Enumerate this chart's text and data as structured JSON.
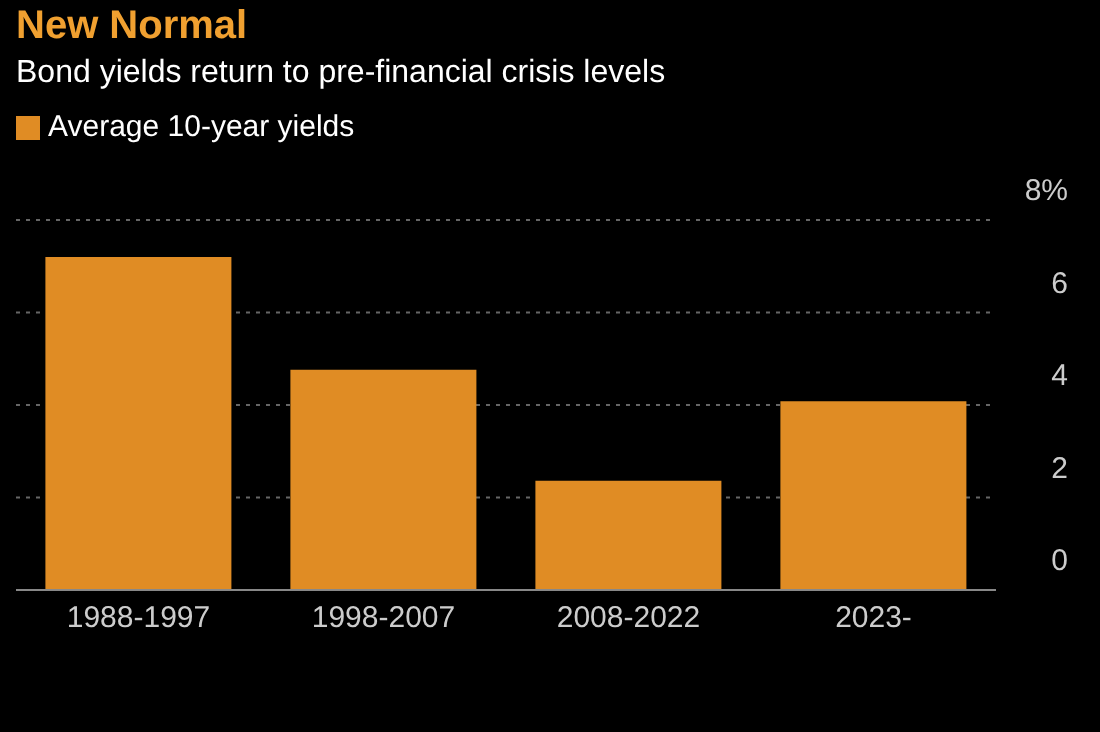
{
  "chart_data": {
    "type": "bar",
    "title": "New Normal",
    "subtitle": "Bond yields return to pre-financial crisis levels",
    "categories": [
      "1988-1997",
      "1998-2007",
      "2008-2022",
      "2023-"
    ],
    "series": [
      {
        "name": "Average 10-year yields",
        "color": "#e08c24",
        "values": [
          7.2,
          4.76,
          2.36,
          4.08
        ]
      }
    ],
    "ylim": [
      0,
      8
    ],
    "yticks": [
      0,
      2,
      4,
      6,
      {
        "value": 8,
        "label": "8%"
      }
    ],
    "grid": "y",
    "legend": "top left"
  }
}
